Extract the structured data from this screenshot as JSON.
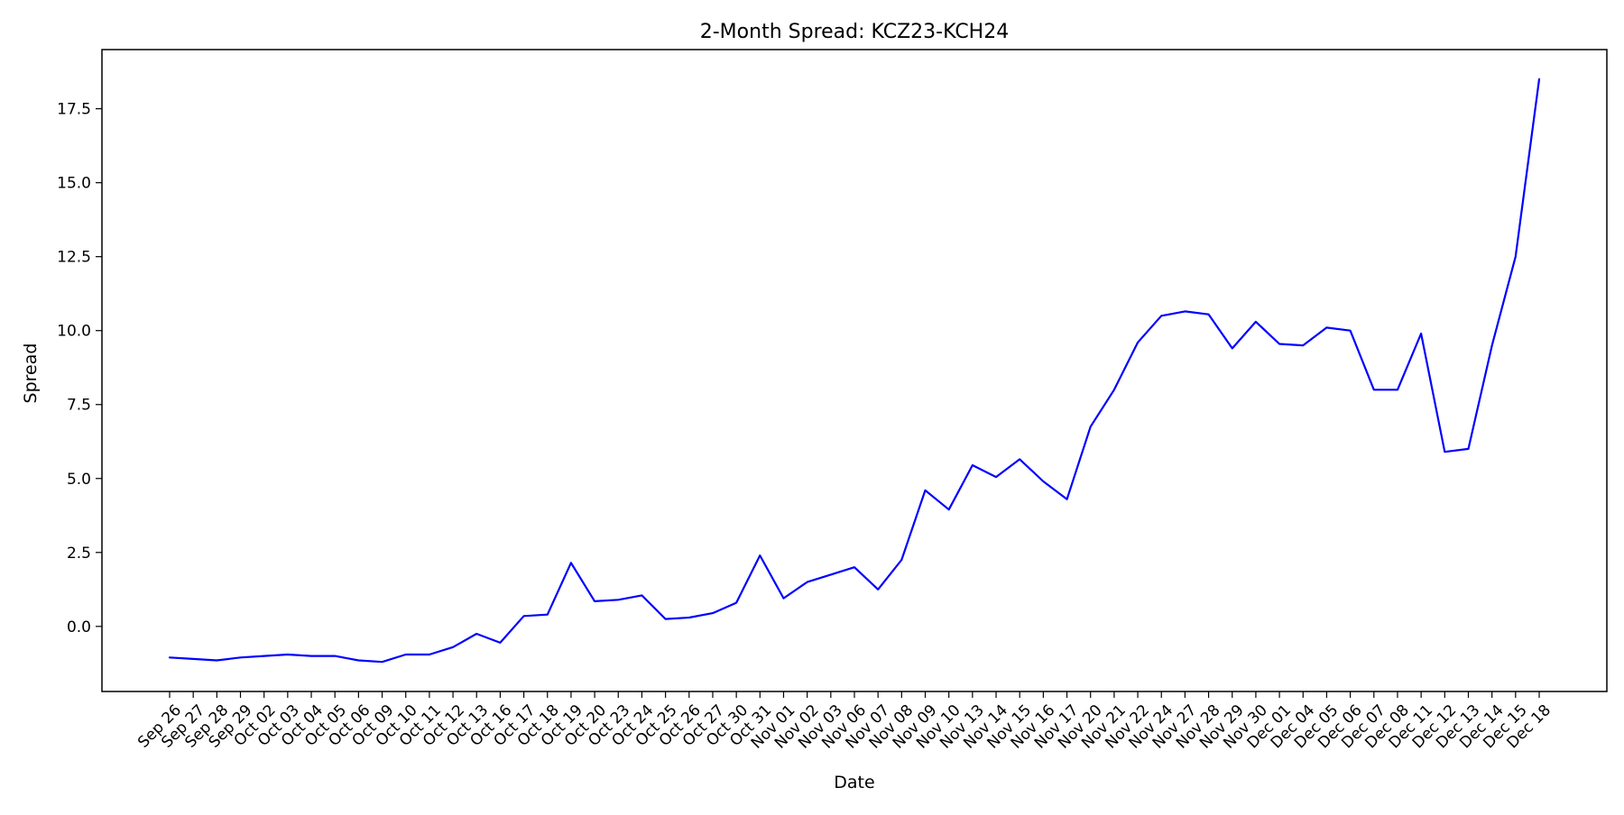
{
  "chart_data": {
    "type": "line",
    "title": "2-Month Spread: KCZ23-KCH24",
    "xlabel": "Date",
    "ylabel": "Spread",
    "ylim": [
      -2.2,
      19.5
    ],
    "yticks": [
      0.0,
      2.5,
      5.0,
      7.5,
      10.0,
      12.5,
      15.0,
      17.5
    ],
    "ytick_labels": [
      "0.0",
      "2.5",
      "5.0",
      "7.5",
      "10.0",
      "12.5",
      "15.0",
      "17.5"
    ],
    "grid": false,
    "line_color": "#0000ff",
    "categories": [
      "Sep 26",
      "Sep 27",
      "Sep 28",
      "Sep 29",
      "Oct 02",
      "Oct 03",
      "Oct 04",
      "Oct 05",
      "Oct 06",
      "Oct 09",
      "Oct 10",
      "Oct 11",
      "Oct 12",
      "Oct 13",
      "Oct 16",
      "Oct 17",
      "Oct 18",
      "Oct 19",
      "Oct 20",
      "Oct 23",
      "Oct 24",
      "Oct 25",
      "Oct 26",
      "Oct 27",
      "Oct 30",
      "Oct 31",
      "Nov 01",
      "Nov 02",
      "Nov 03",
      "Nov 06",
      "Nov 07",
      "Nov 08",
      "Nov 09",
      "Nov 10",
      "Nov 13",
      "Nov 14",
      "Nov 15",
      "Nov 16",
      "Nov 17",
      "Nov 20",
      "Nov 21",
      "Nov 22",
      "Nov 24",
      "Nov 27",
      "Nov 28",
      "Nov 29",
      "Nov 30",
      "Dec 01",
      "Dec 04",
      "Dec 05",
      "Dec 06",
      "Dec 07",
      "Dec 08",
      "Dec 11",
      "Dec 12",
      "Dec 13",
      "Dec 14",
      "Dec 15",
      "Dec 18"
    ],
    "values": [
      -1.05,
      -1.1,
      -1.15,
      -1.05,
      -1.0,
      -0.95,
      -1.0,
      -1.0,
      -1.15,
      -1.2,
      -0.95,
      -0.95,
      -0.7,
      -0.25,
      -0.55,
      0.35,
      0.4,
      2.15,
      0.85,
      0.9,
      1.05,
      0.25,
      0.3,
      0.45,
      0.8,
      2.4,
      0.95,
      1.5,
      1.75,
      2.0,
      1.25,
      2.25,
      4.6,
      3.95,
      5.45,
      5.05,
      5.65,
      4.9,
      4.3,
      6.75,
      8.0,
      9.6,
      10.5,
      10.65,
      10.55,
      9.4,
      10.3,
      9.55,
      9.5,
      10.1,
      10.0,
      8.0,
      8.0,
      9.9,
      5.9,
      6.0,
      9.5,
      12.5,
      18.5
    ]
  }
}
